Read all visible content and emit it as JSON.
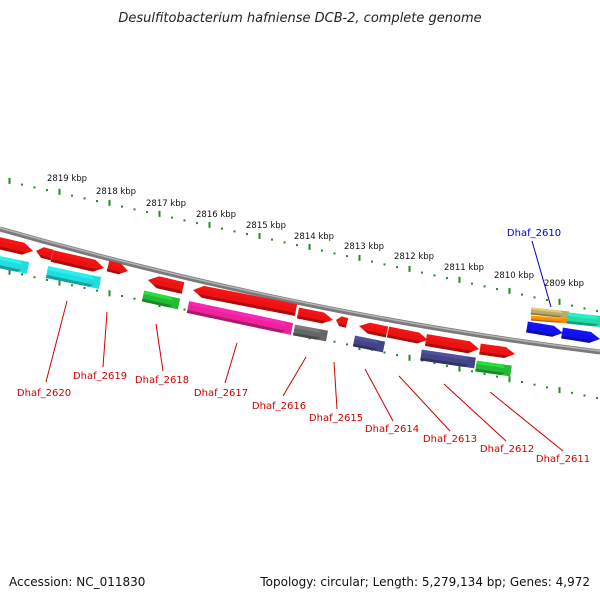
{
  "title": "Desulfitobacterium hafniense DCB-2, complete genome",
  "footer": {
    "accession": "Accession: NC_011830",
    "summary": "Topology: circular; Length: 5,279,134 bp; Genes: 4,972"
  },
  "scale_labels": [
    "2819 kbp",
    "2818 kbp",
    "2817 kbp",
    "2816 kbp",
    "2815 kbp",
    "2814 kbp",
    "2813 kbp",
    "2812 kbp",
    "2811 kbp",
    "2810 kbp",
    "2809 kbp"
  ],
  "gene_labels": [
    {
      "name": "Dhaf_2620",
      "color": "#cc0000"
    },
    {
      "name": "Dhaf_2619",
      "color": "#cc0000"
    },
    {
      "name": "Dhaf_2618",
      "color": "#cc0000"
    },
    {
      "name": "Dhaf_2617",
      "color": "#cc0000"
    },
    {
      "name": "Dhaf_2616",
      "color": "#cc0000"
    },
    {
      "name": "Dhaf_2615",
      "color": "#cc0000"
    },
    {
      "name": "Dhaf_2614",
      "color": "#cc0000"
    },
    {
      "name": "Dhaf_2613",
      "color": "#cc0000"
    },
    {
      "name": "Dhaf_2612",
      "color": "#cc0000"
    },
    {
      "name": "Dhaf_2611",
      "color": "#cc0000"
    },
    {
      "name": "Dhaf_2610",
      "color": "#0000cc"
    }
  ],
  "colors": {
    "backbone": "#808080",
    "ticks": "#228b22",
    "red": "#ee1111",
    "cyan": "#22dddd",
    "green": "#22bb33",
    "magenta": "#ee2299",
    "gray": "#666666",
    "navy": "#444488",
    "blue": "#1111ee",
    "teal": "#22ddaa",
    "orange": "#ff8800",
    "khaki": "#bbaa66"
  }
}
